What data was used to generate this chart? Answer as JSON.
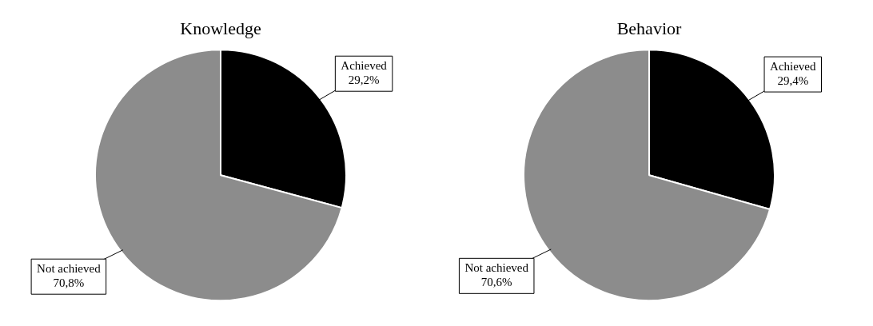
{
  "chart_data": [
    {
      "type": "pie",
      "title": "Knowledge",
      "categories": [
        "Achieved",
        "Not achieved"
      ],
      "values": [
        29.2,
        70.8
      ],
      "colors": [
        "#000000",
        "#8c8c8c"
      ],
      "value_labels": [
        "29,2%",
        "70,8%"
      ]
    },
    {
      "type": "pie",
      "title": "Behavior",
      "categories": [
        "Achieved",
        "Not achieved"
      ],
      "values": [
        29.4,
        70.6
      ],
      "colors": [
        "#000000",
        "#8c8c8c"
      ],
      "value_labels": [
        "29,4%",
        "70,6%"
      ]
    }
  ]
}
